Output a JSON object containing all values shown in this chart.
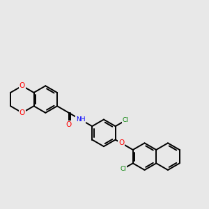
{
  "background_color": "#e8e8e8",
  "bond_color": "#000000",
  "bond_width": 1.4,
  "atom_colors": {
    "O": "#ff0000",
    "N": "#0000ff",
    "Cl": "#008000",
    "C": "#000000"
  },
  "figsize": [
    3.0,
    3.0
  ],
  "dpi": 100
}
